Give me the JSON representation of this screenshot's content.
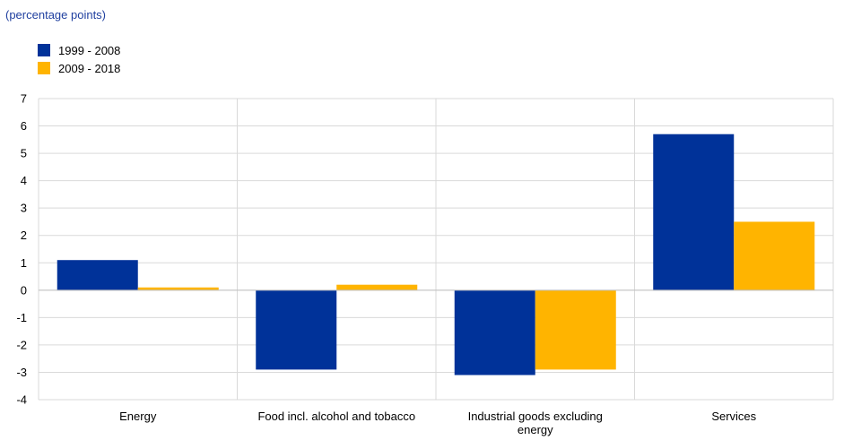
{
  "chart_data": {
    "type": "bar",
    "subtitle": "(percentage points)",
    "categories": [
      "Energy",
      "Food incl. alcohol and tobacco",
      "Industrial goods excluding energy",
      "Services"
    ],
    "category_label_lines": [
      [
        "Energy"
      ],
      [
        "Food incl. alcohol and tobacco"
      ],
      [
        "Industrial goods excluding",
        "energy"
      ],
      [
        "Services"
      ]
    ],
    "series": [
      {
        "name": "1999 - 2008",
        "color": "#003299",
        "values": [
          1.1,
          -2.9,
          -3.1,
          5.7
        ]
      },
      {
        "name": "2009 - 2018",
        "color": "#ffb400",
        "values": [
          0.1,
          0.2,
          -2.9,
          2.5
        ]
      }
    ],
    "ylim": [
      -4,
      7
    ],
    "yticks": [
      "7",
      "6",
      "5",
      "4",
      "3",
      "2",
      "1",
      "0",
      "-1",
      "-2",
      "-3",
      "-4"
    ],
    "grid": true,
    "legend_position": "top-left"
  }
}
